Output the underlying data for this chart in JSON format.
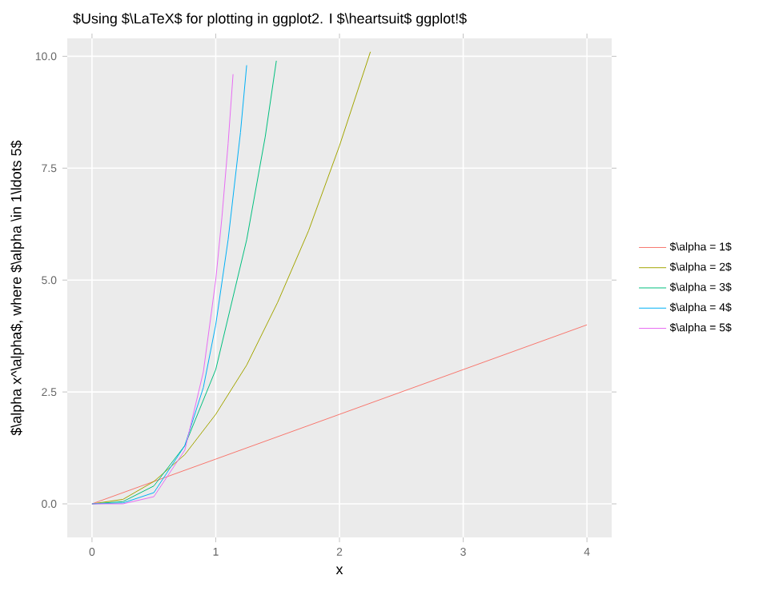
{
  "chart_data": {
    "type": "line",
    "title": "$Using $\\LaTeX$ for plotting in ggplot2. I $\\heartsuit$ ggplot!$",
    "xlabel": "x",
    "ylabel": "$\\alpha  x^\\alpha$, where $\\alpha \\in 1\\ldots 5$",
    "xlim": [
      -0.2,
      4.2
    ],
    "ylim": [
      -0.75,
      10.4
    ],
    "xticks": [
      0,
      1,
      2,
      3,
      4
    ],
    "yticks": [
      {
        "value": 0,
        "label": "0.0"
      },
      {
        "value": 2.5,
        "label": "2.5"
      },
      {
        "value": 5,
        "label": "5.0"
      },
      {
        "value": 7.5,
        "label": "7.5"
      },
      {
        "value": 10,
        "label": "10.0"
      }
    ],
    "grid": true,
    "legend": "right",
    "marker": "none",
    "line_style": "solid",
    "series": [
      {
        "name": "$\\alpha = 1$",
        "color": "#F8766D",
        "x": [
          0,
          1,
          2,
          3,
          4
        ],
        "values": [
          0,
          1,
          2,
          3,
          4
        ]
      },
      {
        "name": "$\\alpha = 2$",
        "color": "#A3A500",
        "x": [
          0,
          0.25,
          0.5,
          0.75,
          1,
          1.25,
          1.5,
          1.75,
          2,
          2.25
        ],
        "values": [
          0,
          0.1,
          0.5,
          1.1,
          2,
          3.1,
          4.5,
          6.1,
          8,
          10.1
        ]
      },
      {
        "name": "$\\alpha = 3$",
        "color": "#00BF7D",
        "x": [
          0,
          0.25,
          0.5,
          0.75,
          1,
          1.25,
          1.4,
          1.49
        ],
        "values": [
          0,
          0.05,
          0.4,
          1.3,
          3,
          5.9,
          8.2,
          9.9
        ]
      },
      {
        "name": "$\\alpha = 4$",
        "color": "#00B0F6",
        "x": [
          0,
          0.25,
          0.5,
          0.75,
          0.9,
          1,
          1.1,
          1.2,
          1.25
        ],
        "values": [
          0,
          0.02,
          0.25,
          1.3,
          2.6,
          4,
          5.9,
          8.3,
          9.8
        ]
      },
      {
        "name": "$\\alpha = 5$",
        "color": "#E76BF3",
        "x": [
          0,
          0.25,
          0.5,
          0.75,
          0.9,
          1,
          1.05,
          1.1,
          1.14
        ],
        "values": [
          0,
          0,
          0.16,
          1.2,
          2.95,
          5,
          6.4,
          8.05,
          9.6
        ]
      }
    ]
  }
}
